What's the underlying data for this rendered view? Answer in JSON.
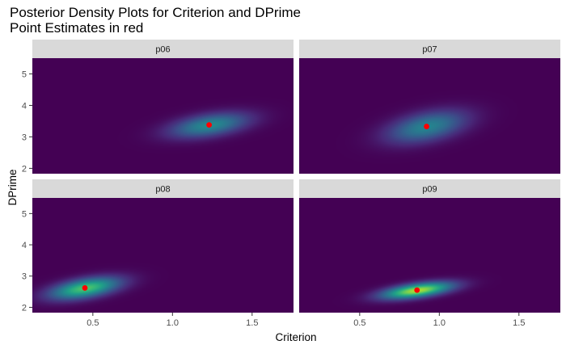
{
  "title_lines": [
    "Posterior Density Plots for Criterion and DPrime",
    "Point Estimates in red"
  ],
  "chart_data": {
    "type": "heatmap",
    "subtype": "faceted 2d posterior density with point estimates",
    "xlabel": "Criterion",
    "ylabel": "DPrime",
    "xlim": [
      0.12,
      1.76
    ],
    "ylim": [
      1.83,
      5.5
    ],
    "x_ticks": [
      0.5,
      1.0,
      1.5
    ],
    "x_tick_labels": [
      "0.5",
      "1.0",
      "1.5"
    ],
    "y_ticks": [
      2,
      3,
      4,
      5
    ],
    "y_tick_labels": [
      "2",
      "3",
      "4",
      "5"
    ],
    "colormap": "viridis",
    "background_color": "#440154",
    "point_color": "#ff0000",
    "strip_color": "#d9d9d9",
    "grid": false,
    "facets": [
      {
        "label": "p06",
        "point": {
          "x": 1.23,
          "y": 3.38
        },
        "density": {
          "sd_x": 0.17,
          "sd_y": 0.27,
          "rho": 0.45,
          "peak": 0.48
        }
      },
      {
        "label": "p07",
        "point": {
          "x": 0.92,
          "y": 3.33
        },
        "density": {
          "sd_x": 0.17,
          "sd_y": 0.35,
          "rho": 0.45,
          "peak": 0.45
        }
      },
      {
        "label": "p08",
        "point": {
          "x": 0.45,
          "y": 2.62
        },
        "density": {
          "sd_x": 0.15,
          "sd_y": 0.24,
          "rho": 0.5,
          "peak": 0.72
        }
      },
      {
        "label": "p09",
        "point": {
          "x": 0.86,
          "y": 2.55
        },
        "density": {
          "sd_x": 0.15,
          "sd_y": 0.18,
          "rho": 0.55,
          "peak": 0.88
        }
      }
    ]
  }
}
